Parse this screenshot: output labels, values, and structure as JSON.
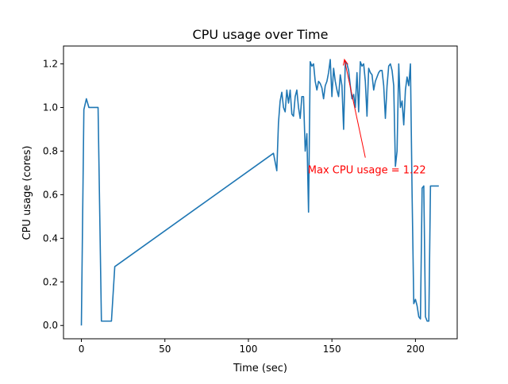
{
  "chart_data": {
    "type": "line",
    "title": "CPU usage over Time",
    "xlabel": "Time (sec)",
    "ylabel": "CPU usage (cores)",
    "xlim": [
      -10.7,
      225
    ],
    "ylim": [
      -0.061,
      1.282
    ],
    "x_ticks": [
      0,
      50,
      100,
      150,
      200
    ],
    "x_tick_labels": [
      "0",
      "50",
      "100",
      "150",
      "200"
    ],
    "y_ticks": [
      0.0,
      0.2,
      0.4,
      0.6,
      0.8,
      1.0,
      1.2
    ],
    "y_tick_labels": [
      "0.0",
      "0.2",
      "0.4",
      "0.6",
      "0.8",
      "1.0",
      "1.2"
    ],
    "grid": false,
    "line_color": "#1f77b4",
    "annotation": {
      "text": "Max CPU usage = 1.22",
      "color": "#ff0000",
      "point": [
        157.5,
        1.22
      ],
      "text_anchor_data": [
        170,
        0.77
      ]
    },
    "series": [
      {
        "x": [
          0,
          1.5,
          3,
          4.5,
          6,
          10,
          12,
          13,
          17,
          18,
          20,
          115,
          117,
          118,
          119,
          120,
          121,
          122,
          123,
          124,
          125,
          126,
          127,
          128,
          129,
          130,
          131,
          132,
          133,
          134,
          135,
          136,
          137,
          138,
          139,
          140,
          141,
          142,
          143,
          144,
          145,
          146,
          147,
          148,
          149,
          150,
          151,
          152,
          153,
          154,
          155,
          156,
          157,
          158,
          159,
          160,
          161,
          162,
          163,
          164,
          165,
          166,
          167,
          168,
          169,
          170,
          171,
          172,
          173,
          174,
          175,
          176,
          177,
          178,
          179,
          180,
          181,
          182,
          183,
          184,
          185,
          186,
          187,
          188,
          189,
          190,
          191,
          192,
          193,
          194,
          195,
          196,
          197,
          198,
          199,
          200,
          201,
          202,
          203,
          204,
          205,
          206,
          207,
          208,
          209,
          210,
          211,
          212,
          213,
          214
        ],
        "y": [
          0.0,
          0.99,
          1.04,
          1.0,
          1.0,
          1.0,
          0.02,
          0.02,
          0.02,
          0.02,
          0.27,
          0.79,
          0.71,
          0.93,
          1.03,
          1.07,
          1.0,
          0.98,
          1.08,
          1.02,
          1.08,
          0.97,
          0.96,
          1.05,
          1.08,
          1.0,
          0.95,
          1.05,
          1.05,
          0.8,
          0.88,
          0.52,
          1.21,
          1.19,
          1.2,
          1.12,
          1.08,
          1.12,
          1.11,
          1.09,
          1.04,
          1.1,
          1.12,
          1.16,
          1.22,
          1.05,
          1.18,
          1.12,
          1.08,
          1.05,
          1.15,
          1.1,
          0.9,
          1.21,
          1.2,
          1.17,
          1.1,
          1.04,
          1.06,
          1.0,
          1.16,
          0.98,
          1.21,
          1.19,
          1.2,
          1.12,
          0.96,
          1.18,
          1.16,
          1.15,
          1.08,
          1.12,
          1.14,
          1.16,
          1.17,
          1.17,
          1.1,
          0.95,
          1.1,
          1.19,
          1.2,
          1.17,
          1.1,
          0.73,
          0.8,
          1.2,
          1.0,
          1.03,
          0.92,
          1.08,
          1.14,
          1.1,
          1.2,
          0.6,
          0.1,
          0.12,
          0.09,
          0.04,
          0.03,
          0.63,
          0.64,
          0.04,
          0.02,
          0.02,
          0.64,
          0.64,
          0.64,
          0.64,
          0.64,
          0.64
        ]
      }
    ]
  }
}
